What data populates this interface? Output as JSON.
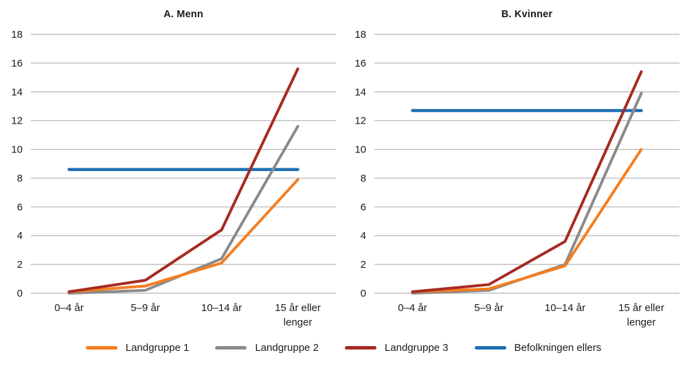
{
  "colors": {
    "background": "#FFFFFF",
    "gridline": "#B3B3B3",
    "text": "#1A1A1A",
    "landgruppe1": "#F57E20",
    "landgruppe2": "#8A8A8A",
    "landgruppe3": "#A62B22",
    "befolkningen": "#1F6FB5"
  },
  "legend": {
    "items": [
      {
        "label": "Landgruppe 1",
        "color": "#F57E20"
      },
      {
        "label": "Landgruppe 2",
        "color": "#8A8A8A"
      },
      {
        "label": "Landgruppe 3",
        "color": "#A62B22"
      },
      {
        "label": "Befolkningen ellers",
        "color": "#1F6FB5"
      }
    ]
  },
  "chart_data": [
    {
      "type": "line",
      "title": "A. Menn",
      "categories": [
        "0–4 år",
        "5–9 år",
        "10–14 år",
        "15 år eller\nlenger"
      ],
      "xlabel": "",
      "ylabel": "",
      "ylim": [
        0,
        18
      ],
      "ytick_step": 2,
      "grid": true,
      "legend_position": "bottom",
      "zorder": [
        3,
        1,
        0,
        2
      ],
      "series": [
        {
          "name": "Landgruppe 1",
          "color": "#F57E20",
          "stroke_width": 4,
          "values": [
            0.1,
            0.5,
            2.1,
            7.9
          ]
        },
        {
          "name": "Landgruppe 2",
          "color": "#8A8A8A",
          "stroke_width": 4,
          "values": [
            0.0,
            0.2,
            2.4,
            11.6
          ]
        },
        {
          "name": "Landgruppe 3",
          "color": "#A62B22",
          "stroke_width": 4,
          "values": [
            0.1,
            0.9,
            4.4,
            15.6
          ]
        },
        {
          "name": "Befolkningen ellers",
          "color": "#1F6FB5",
          "stroke_width": 4.5,
          "values": [
            8.6,
            8.6,
            8.6,
            8.6
          ]
        }
      ]
    },
    {
      "type": "line",
      "title": "B. Kvinner",
      "categories": [
        "0–4 år",
        "5–9 år",
        "10–14 år",
        "15 år eller\nlenger"
      ],
      "xlabel": "",
      "ylabel": "",
      "ylim": [
        0,
        18
      ],
      "ytick_step": 2,
      "grid": true,
      "legend_position": "bottom",
      "zorder": [
        3,
        1,
        0,
        2
      ],
      "series": [
        {
          "name": "Landgruppe 1",
          "color": "#F57E20",
          "stroke_width": 4,
          "values": [
            0.1,
            0.3,
            1.9,
            10.0
          ]
        },
        {
          "name": "Landgruppe 2",
          "color": "#8A8A8A",
          "stroke_width": 4,
          "values": [
            0.0,
            0.2,
            2.0,
            13.9
          ]
        },
        {
          "name": "Landgruppe 3",
          "color": "#A62B22",
          "stroke_width": 4,
          "values": [
            0.1,
            0.6,
            3.6,
            15.4
          ]
        },
        {
          "name": "Befolkningen ellers",
          "color": "#1F6FB5",
          "stroke_width": 4.5,
          "values": [
            12.7,
            12.7,
            12.7,
            12.7
          ]
        }
      ]
    }
  ]
}
